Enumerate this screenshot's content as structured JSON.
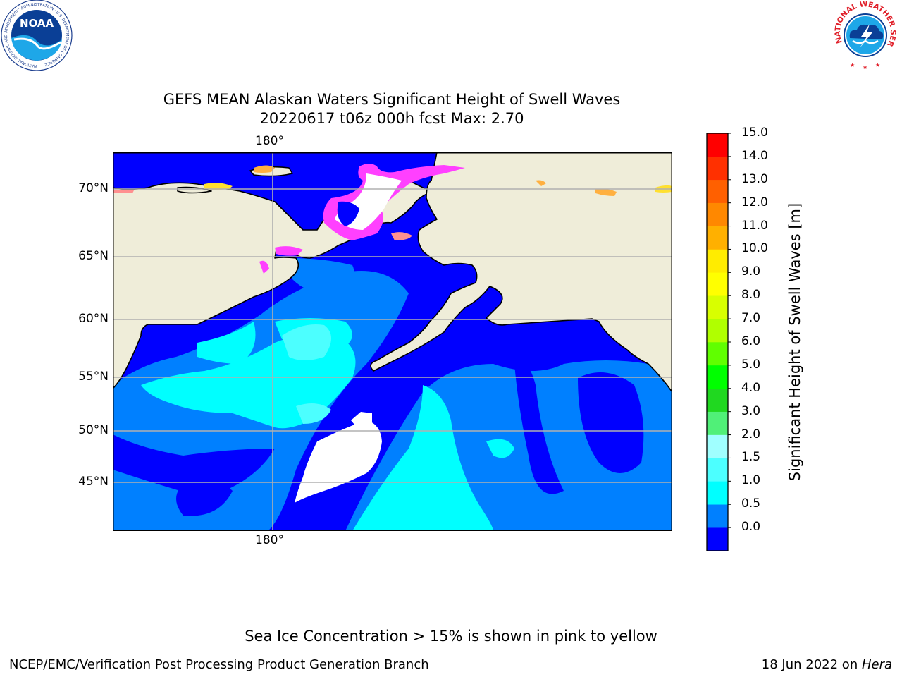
{
  "title_line1": "GEFS MEAN Alaskan Waters Significant Height of Swell Waves",
  "title_line2": "20220617 t06z 000h fcst    Max: 2.70",
  "map": {
    "lon_label_top": "180°",
    "lon_label_bottom": "180°",
    "lat_labels": [
      "70°N",
      "65°N",
      "60°N",
      "55°N",
      "50°N",
      "45°N"
    ],
    "land_color": "#efedd9",
    "ocean_colors": [
      "#0000ff",
      "#0080ff",
      "#00ffff",
      "#4cffff",
      "#ffffff"
    ],
    "ice_colors": [
      "#ff40ff",
      "#ff9090",
      "#ffb040",
      "#ffe030"
    ]
  },
  "colorbar": {
    "label": "Significant Height of Swell Waves [m]",
    "ticks": [
      "15.0",
      "14.0",
      "13.0",
      "12.0",
      "11.0",
      "10.0",
      "9.0",
      "8.0",
      "7.0",
      "6.0",
      "5.0",
      "4.0",
      "3.0",
      "2.0",
      "1.5",
      "1.0",
      "0.5",
      "0.0"
    ],
    "colors": [
      "#0000ff",
      "#0080ff",
      "#00ffff",
      "#4cffff",
      "#a0ffff",
      "#50f078",
      "#20d820",
      "#00ff00",
      "#60ff00",
      "#b0ff00",
      "#d8ff00",
      "#ffff00",
      "#ffec00",
      "#ffb000",
      "#ff8800",
      "#ff6000",
      "#ff3000",
      "#ff0000"
    ]
  },
  "logos": {
    "left": "NOAA",
    "left_ring": "NATIONAL OCEANIC AND ATMOSPHERIC ADMINISTRATION · U.S. DEPARTMENT OF COMMERCE",
    "right_ring": "NATIONAL WEATHER SERVICE"
  },
  "footer": {
    "note": "Sea Ice Concentration > 15% is shown in pink to yellow",
    "left": "NCEP/EMC/Verification Post Processing Product Generation Branch",
    "right_prefix": "18 Jun 2022 on ",
    "right_host": "Hera"
  }
}
